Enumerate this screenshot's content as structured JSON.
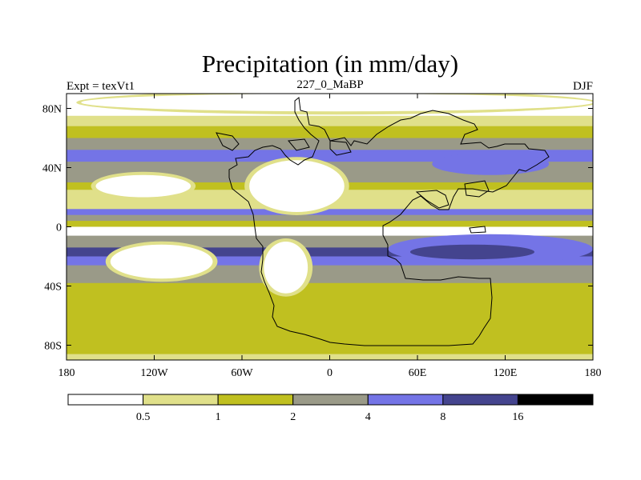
{
  "chart_data": {
    "type": "heatmap",
    "title": "Precipitation (in mm/day)",
    "left_label": "Expt = texVt1",
    "center_label": "227_0_MaBP",
    "right_label": "DJF",
    "x_range": [
      -180,
      180
    ],
    "y_range": [
      -90,
      90
    ],
    "x_ticks": [
      {
        "value": -180,
        "label": "180"
      },
      {
        "value": -120,
        "label": "120W"
      },
      {
        "value": -60,
        "label": "60W"
      },
      {
        "value": 0,
        "label": "0"
      },
      {
        "value": 60,
        "label": "60E"
      },
      {
        "value": 120,
        "label": "120E"
      },
      {
        "value": 180,
        "label": "180"
      }
    ],
    "y_ticks": [
      {
        "value": 80,
        "label": "80N"
      },
      {
        "value": 40,
        "label": "40N"
      },
      {
        "value": 0,
        "label": "0"
      },
      {
        "value": -40,
        "label": "40S"
      },
      {
        "value": -80,
        "label": "80S"
      }
    ],
    "levels": [
      "0.5",
      "1",
      "2",
      "4",
      "8",
      "16"
    ],
    "colors": [
      "#ffffff",
      "#e0e08a",
      "#c0c020",
      "#9a9a88",
      "#7474e6",
      "#44448e",
      "#000000"
    ],
    "zonal_profile": [
      {
        "lat": 90,
        "value": 0.3
      },
      {
        "lat": 82,
        "value": 0.4
      },
      {
        "lat": 75,
        "value": 0.8
      },
      {
        "lat": 68,
        "value": 1.5
      },
      {
        "lat": 60,
        "value": 2.5
      },
      {
        "lat": 52,
        "value": 4.5
      },
      {
        "lat": 44,
        "value": 3.5
      },
      {
        "lat": 36,
        "value": 2.3
      },
      {
        "lat": 30,
        "value": 1.6
      },
      {
        "lat": 25,
        "value": 0.9
      },
      {
        "lat": 20,
        "value": 0.9
      },
      {
        "lat": 12,
        "value": 4.5
      },
      {
        "lat": 8,
        "value": 3.5
      },
      {
        "lat": 4,
        "value": 1.5
      },
      {
        "lat": 0,
        "value": 0.3
      },
      {
        "lat": -6,
        "value": 2.5
      },
      {
        "lat": -14,
        "value": 9.0
      },
      {
        "lat": -20,
        "value": 6.0
      },
      {
        "lat": -26,
        "value": 3.0
      },
      {
        "lat": -32,
        "value": 2.0
      },
      {
        "lat": -38,
        "value": 1.5
      },
      {
        "lat": -50,
        "value": 1.5
      },
      {
        "lat": -65,
        "value": 1.5
      },
      {
        "lat": -78,
        "value": 1.5
      },
      {
        "lat": -86,
        "value": 0.8
      },
      {
        "lat": -90,
        "value": 0.5
      }
    ],
    "dry_regions": [
      {
        "name": "northern-pangea-desert",
        "lon": [
          -55,
          10
        ],
        "lat": [
          10,
          45
        ]
      },
      {
        "name": "southern-pangea-desert",
        "lon": [
          -45,
          -15
        ],
        "lat": [
          -45,
          -10
        ]
      },
      {
        "name": "eastern-ocean-dry-zone",
        "lon": [
          -150,
          -80
        ],
        "lat": [
          -35,
          -12
        ]
      },
      {
        "name": "northern-ocean-dry-zone",
        "lon": [
          -160,
          -95
        ],
        "lat": [
          20,
          35
        ]
      },
      {
        "name": "arctic-dry-cap",
        "lon": [
          -170,
          180
        ],
        "lat": [
          78,
          90
        ]
      }
    ],
    "wet_regions": [
      {
        "name": "tethys-rain-band",
        "lon": [
          40,
          180
        ],
        "lat": [
          -25,
          -5
        ]
      },
      {
        "name": "tethys-core",
        "lon": [
          55,
          140
        ],
        "lat": [
          -22,
          -12
        ]
      },
      {
        "name": "northern-wet-band",
        "lon": [
          70,
          150
        ],
        "lat": [
          35,
          50
        ]
      }
    ],
    "grid": false
  }
}
